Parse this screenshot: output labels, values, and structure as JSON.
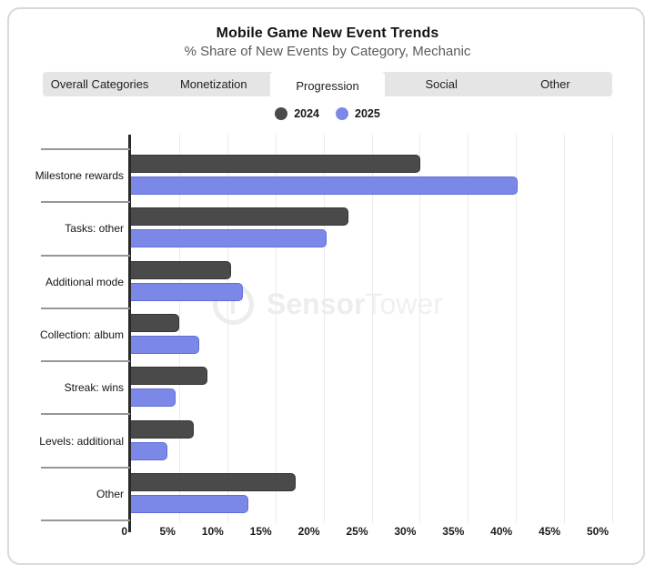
{
  "header": {
    "title": "Mobile Game New Event Trends",
    "subtitle": "% Share of New Events by Category, Mechanic"
  },
  "tabs": [
    {
      "label": "Overall Categories",
      "active": false
    },
    {
      "label": "Monetization",
      "active": false
    },
    {
      "label": "Progression",
      "active": true
    },
    {
      "label": "Social",
      "active": false
    },
    {
      "label": "Other",
      "active": false
    }
  ],
  "watermark": {
    "brand_bold": "Sensor",
    "brand_light": "Tower",
    "logo_icon": "sensortower-logo-icon"
  },
  "colors": {
    "series_2024": "#4a4a4a",
    "series_2024_border": "#353535",
    "series_2025": "#7c88e8",
    "series_2025_border": "#5f6cd6",
    "tab_bar_bg": "#e5e5e5",
    "active_tab_bg": "#ffffff",
    "gridline": "#ebebeb",
    "axis": "#2a2a2a",
    "separator": "#979797"
  },
  "chart_data": {
    "type": "bar",
    "orientation": "horizontal",
    "title": "Mobile Game New Event Trends",
    "subtitle": "% Share of New Events by Category, Mechanic",
    "categories": [
      "Milestone rewards",
      "Tasks: other",
      "Additional mode",
      "Collection: album",
      "Streak: wins",
      "Levels: additional",
      "Other"
    ],
    "series": [
      {
        "name": "2024",
        "color": "#4a4a4a",
        "values": [
          30.1,
          22.6,
          10.4,
          5.0,
          7.9,
          6.5,
          17.1
        ]
      },
      {
        "name": "2025",
        "color": "#7c88e8",
        "values": [
          40.2,
          20.3,
          11.6,
          7.1,
          4.6,
          3.8,
          12.2
        ]
      }
    ],
    "xlabel": "",
    "ylabel": "",
    "xlim": [
      0,
      50
    ],
    "x_ticks": [
      {
        "label": "0",
        "value": 0
      },
      {
        "label": "5%",
        "value": 5
      },
      {
        "label": "10%",
        "value": 10
      },
      {
        "label": "15%",
        "value": 15
      },
      {
        "label": "20%",
        "value": 20
      },
      {
        "label": "25%",
        "value": 25
      },
      {
        "label": "30%",
        "value": 30
      },
      {
        "label": "35%",
        "value": 35
      },
      {
        "label": "40%",
        "value": 40
      },
      {
        "label": "45%",
        "value": 45
      },
      {
        "label": "50%",
        "value": 50
      }
    ],
    "grid": true,
    "legend_position": "top"
  }
}
